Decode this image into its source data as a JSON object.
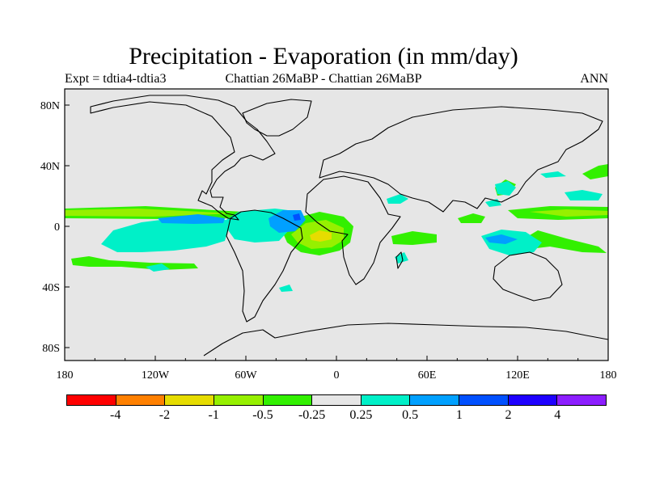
{
  "title": "Precipitation - Evaporation (in mm/day)",
  "left_subtitle": "Expt = tdtia4-tdtia3",
  "center_subtitle": "Chattian  26MaBP - Chattian  26MaBP",
  "right_subtitle": "ANN",
  "map": {
    "projection": "cylindrical-equidistant",
    "background_color": "#e6e6e6",
    "lon_ticks": [
      "180",
      "120W",
      "60W",
      "0",
      "60E",
      "120E",
      "180"
    ],
    "lat_ticks": [
      "80N",
      "40N",
      "0",
      "40S",
      "80S"
    ]
  },
  "colorbar": {
    "colors": [
      "#ff0000",
      "#ff8000",
      "#e6dc00",
      "#96f000",
      "#32f000",
      "#e6e6e6",
      "#00f0c8",
      "#00a0ff",
      "#0050ff",
      "#1e00ff",
      "#8c1eff"
    ],
    "labels": [
      "-4",
      "-2",
      "-1",
      "-0.5",
      "-0.25",
      "0.25",
      "0.5",
      "1",
      "2",
      "4"
    ]
  }
}
